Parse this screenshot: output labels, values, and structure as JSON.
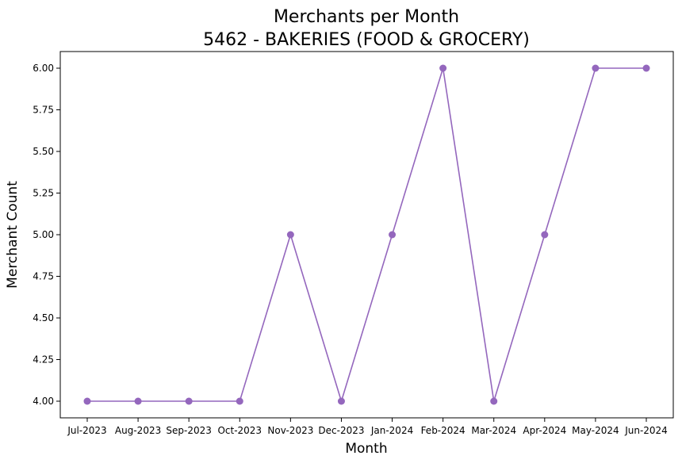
{
  "chart_data": {
    "type": "line",
    "title": "Merchants per Month",
    "subtitle": "5462 - BAKERIES (FOOD & GROCERY)",
    "xlabel": "Month",
    "ylabel": "Merchant Count",
    "categories": [
      "Jul-2023",
      "Aug-2023",
      "Sep-2023",
      "Oct-2023",
      "Nov-2023",
      "Dec-2023",
      "Jan-2024",
      "Feb-2024",
      "Mar-2024",
      "Apr-2024",
      "May-2024",
      "Jun-2024"
    ],
    "series": [
      {
        "values": [
          4,
          4,
          4,
          4,
          5,
          4,
          5,
          6,
          4,
          5,
          6,
          6
        ],
        "color": "#9467bd",
        "marker": "circle"
      }
    ],
    "ylim": [
      3.9,
      6.1
    ],
    "yticks": [
      4.0,
      4.25,
      4.5,
      4.75,
      5.0,
      5.25,
      5.5,
      5.75,
      6.0
    ],
    "ytick_labels": [
      "4.00",
      "4.25",
      "4.50",
      "4.75",
      "5.00",
      "5.25",
      "5.50",
      "5.75",
      "6.00"
    ],
    "grid": false,
    "legend": false
  }
}
